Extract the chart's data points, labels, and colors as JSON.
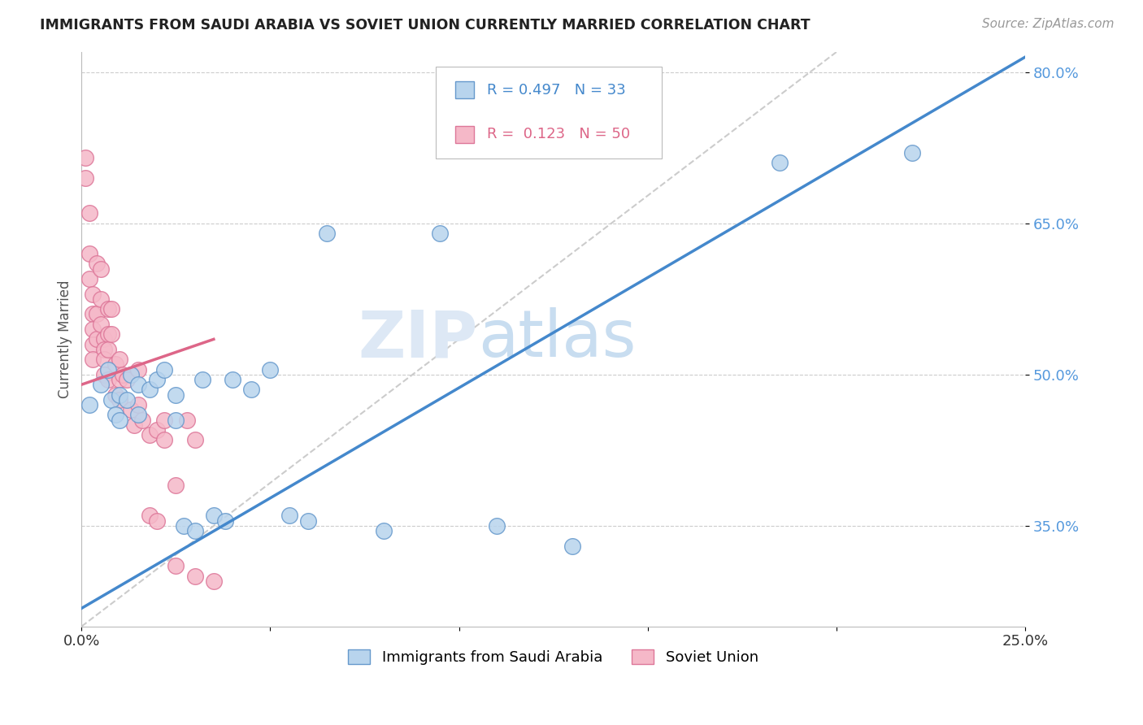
{
  "title": "IMMIGRANTS FROM SAUDI ARABIA VS SOVIET UNION CURRENTLY MARRIED CORRELATION CHART",
  "source": "Source: ZipAtlas.com",
  "ylabel": "Currently Married",
  "watermark_zip": "ZIP",
  "watermark_atlas": "atlas",
  "xmin": 0.0,
  "xmax": 0.25,
  "ymin": 0.25,
  "ymax": 0.82,
  "yticks": [
    0.35,
    0.5,
    0.65,
    0.8
  ],
  "ytick_labels": [
    "35.0%",
    "50.0%",
    "65.0%",
    "80.0%"
  ],
  "xticks": [
    0.0,
    0.05,
    0.1,
    0.15,
    0.2,
    0.25
  ],
  "xtick_labels": [
    "0.0%",
    "",
    "",
    "",
    "",
    "25.0%"
  ],
  "saudi_color": "#b8d4ed",
  "soviet_color": "#f5b8c8",
  "saudi_edge": "#6699cc",
  "soviet_edge": "#dd7799",
  "trend_saudi_color": "#4488cc",
  "trend_soviet_color": "#dd6688",
  "diagonal_color": "#cccccc",
  "R_saudi": 0.497,
  "N_saudi": 33,
  "R_soviet": 0.123,
  "N_soviet": 50,
  "legend_label_saudi": "Immigrants from Saudi Arabia",
  "legend_label_soviet": "Soviet Union",
  "saudi_x": [
    0.002,
    0.005,
    0.007,
    0.008,
    0.009,
    0.01,
    0.01,
    0.012,
    0.013,
    0.015,
    0.015,
    0.018,
    0.02,
    0.022,
    0.025,
    0.025,
    0.027,
    0.03,
    0.032,
    0.035,
    0.038,
    0.04,
    0.045,
    0.05,
    0.055,
    0.06,
    0.065,
    0.08,
    0.095,
    0.11,
    0.13,
    0.185,
    0.22
  ],
  "saudi_y": [
    0.47,
    0.49,
    0.505,
    0.475,
    0.46,
    0.48,
    0.455,
    0.475,
    0.5,
    0.49,
    0.46,
    0.485,
    0.495,
    0.505,
    0.48,
    0.455,
    0.35,
    0.345,
    0.495,
    0.36,
    0.355,
    0.495,
    0.485,
    0.505,
    0.36,
    0.355,
    0.64,
    0.345,
    0.64,
    0.35,
    0.33,
    0.71,
    0.72
  ],
  "soviet_x": [
    0.001,
    0.001,
    0.002,
    0.002,
    0.002,
    0.003,
    0.003,
    0.003,
    0.003,
    0.003,
    0.004,
    0.004,
    0.004,
    0.005,
    0.005,
    0.005,
    0.006,
    0.006,
    0.006,
    0.006,
    0.007,
    0.007,
    0.007,
    0.007,
    0.008,
    0.008,
    0.009,
    0.009,
    0.01,
    0.01,
    0.01,
    0.011,
    0.012,
    0.013,
    0.014,
    0.015,
    0.015,
    0.016,
    0.018,
    0.018,
    0.02,
    0.02,
    0.022,
    0.022,
    0.025,
    0.025,
    0.028,
    0.03,
    0.03,
    0.035
  ],
  "soviet_y": [
    0.715,
    0.695,
    0.66,
    0.62,
    0.595,
    0.58,
    0.56,
    0.545,
    0.53,
    0.515,
    0.61,
    0.56,
    0.535,
    0.605,
    0.575,
    0.55,
    0.535,
    0.525,
    0.515,
    0.5,
    0.565,
    0.54,
    0.525,
    0.495,
    0.565,
    0.54,
    0.51,
    0.48,
    0.515,
    0.495,
    0.475,
    0.5,
    0.495,
    0.465,
    0.45,
    0.505,
    0.47,
    0.455,
    0.44,
    0.36,
    0.445,
    0.355,
    0.455,
    0.435,
    0.39,
    0.31,
    0.455,
    0.435,
    0.3,
    0.295
  ],
  "trend_saudi_x0": 0.0,
  "trend_saudi_x1": 0.25,
  "trend_saudi_y0": 0.268,
  "trend_saudi_y1": 0.815,
  "trend_soviet_x0": 0.0,
  "trend_soviet_x1": 0.035,
  "trend_soviet_y0": 0.49,
  "trend_soviet_y1": 0.535
}
